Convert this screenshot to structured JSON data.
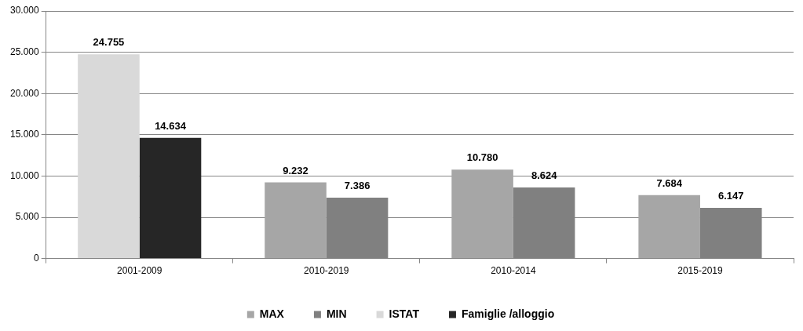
{
  "chart_data": {
    "type": "bar",
    "categories": [
      "2001-2009",
      "2010-2019",
      "2010-2014",
      "2015-2019"
    ],
    "series": [
      {
        "name": "MAX",
        "color": "#a6a6a6",
        "values": [
          null,
          9232,
          10780,
          7684
        ],
        "value_labels": [
          null,
          "9.232",
          "10.780",
          "7.684"
        ]
      },
      {
        "name": "MIN",
        "color": "#808080",
        "values": [
          null,
          7386,
          8624,
          6147
        ],
        "value_labels": [
          null,
          "7.386",
          "8.624",
          "6.147"
        ]
      },
      {
        "name": "ISTAT",
        "color": "#d9d9d9",
        "values": [
          24755,
          null,
          null,
          null
        ],
        "value_labels": [
          "24.755",
          null,
          null,
          null
        ]
      },
      {
        "name": "Famiglie /alloggio",
        "color": "#262626",
        "values": [
          14634,
          null,
          null,
          null
        ],
        "value_labels": [
          "14.634",
          null,
          null,
          null
        ]
      }
    ],
    "ylim": [
      0,
      30000
    ],
    "yticks": [
      0,
      {
        "value": 5000,
        "label": "5.000"
      },
      {
        "value": 10000,
        "label": "10.000"
      },
      {
        "value": 15000,
        "label": "15.000"
      },
      {
        "value": 20000,
        "label": "20.000"
      },
      {
        "value": 25000,
        "label": "25.000"
      },
      {
        "value": 30000,
        "label": "30.000"
      }
    ],
    "grid": true,
    "legend": "bottom",
    "data_labels": true
  }
}
